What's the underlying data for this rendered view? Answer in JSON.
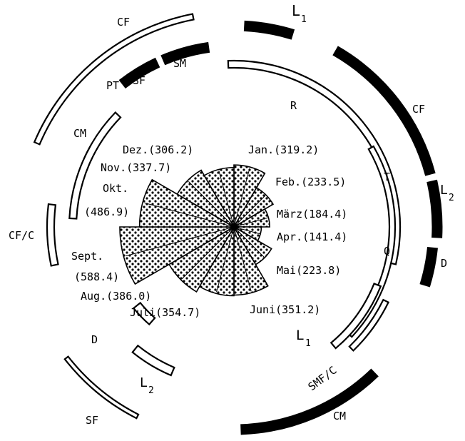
{
  "months": [
    {
      "label": "Jan.(319.2)",
      "value": 319.2
    },
    {
      "label": "Feb.(233.5)",
      "value": 233.5
    },
    {
      "label": "März(184.4)",
      "value": 184.4
    },
    {
      "label": "Apr.(141.4)",
      "value": 141.4
    },
    {
      "label": "Mai(223.8)",
      "value": 223.8
    },
    {
      "label": "Juni(351.2)",
      "value": 351.2
    },
    {
      "label": "Juli(354.7)",
      "value": 354.7
    },
    {
      "label": "Aug.(386.0)",
      "value": 386.0
    },
    {
      "label": "Sept.",
      "label2": "(588.4)",
      "value": 588.4
    },
    {
      "label": "Okt.",
      "label2": "(486.9)",
      "value": 486.9
    },
    {
      "label": "Nov.(337.7)",
      "value": 337.7
    },
    {
      "label": "Dez.(306.2)",
      "value": 306.2
    }
  ],
  "ring_labels": {
    "cf_top": "CF",
    "sm": "SM",
    "pt": "PT",
    "sf_top": "SF",
    "l1_top": "L",
    "l1_top_sub": "1",
    "r": "R",
    "cf_right": "CF",
    "t": "T",
    "l2_right": "L",
    "l2_right_sub": "2",
    "q": "Q",
    "d_right": "D",
    "cm_left": "CM",
    "cfc": "CF/C",
    "d_left": "D",
    "l2_bottom": "L",
    "l2_bottom_sub": "2",
    "sf_bottom": "SF",
    "l1_bottom": "L",
    "l1_bottom_sub": "1",
    "smfc": "SMF/C",
    "cm_bottom": "CM"
  }
}
